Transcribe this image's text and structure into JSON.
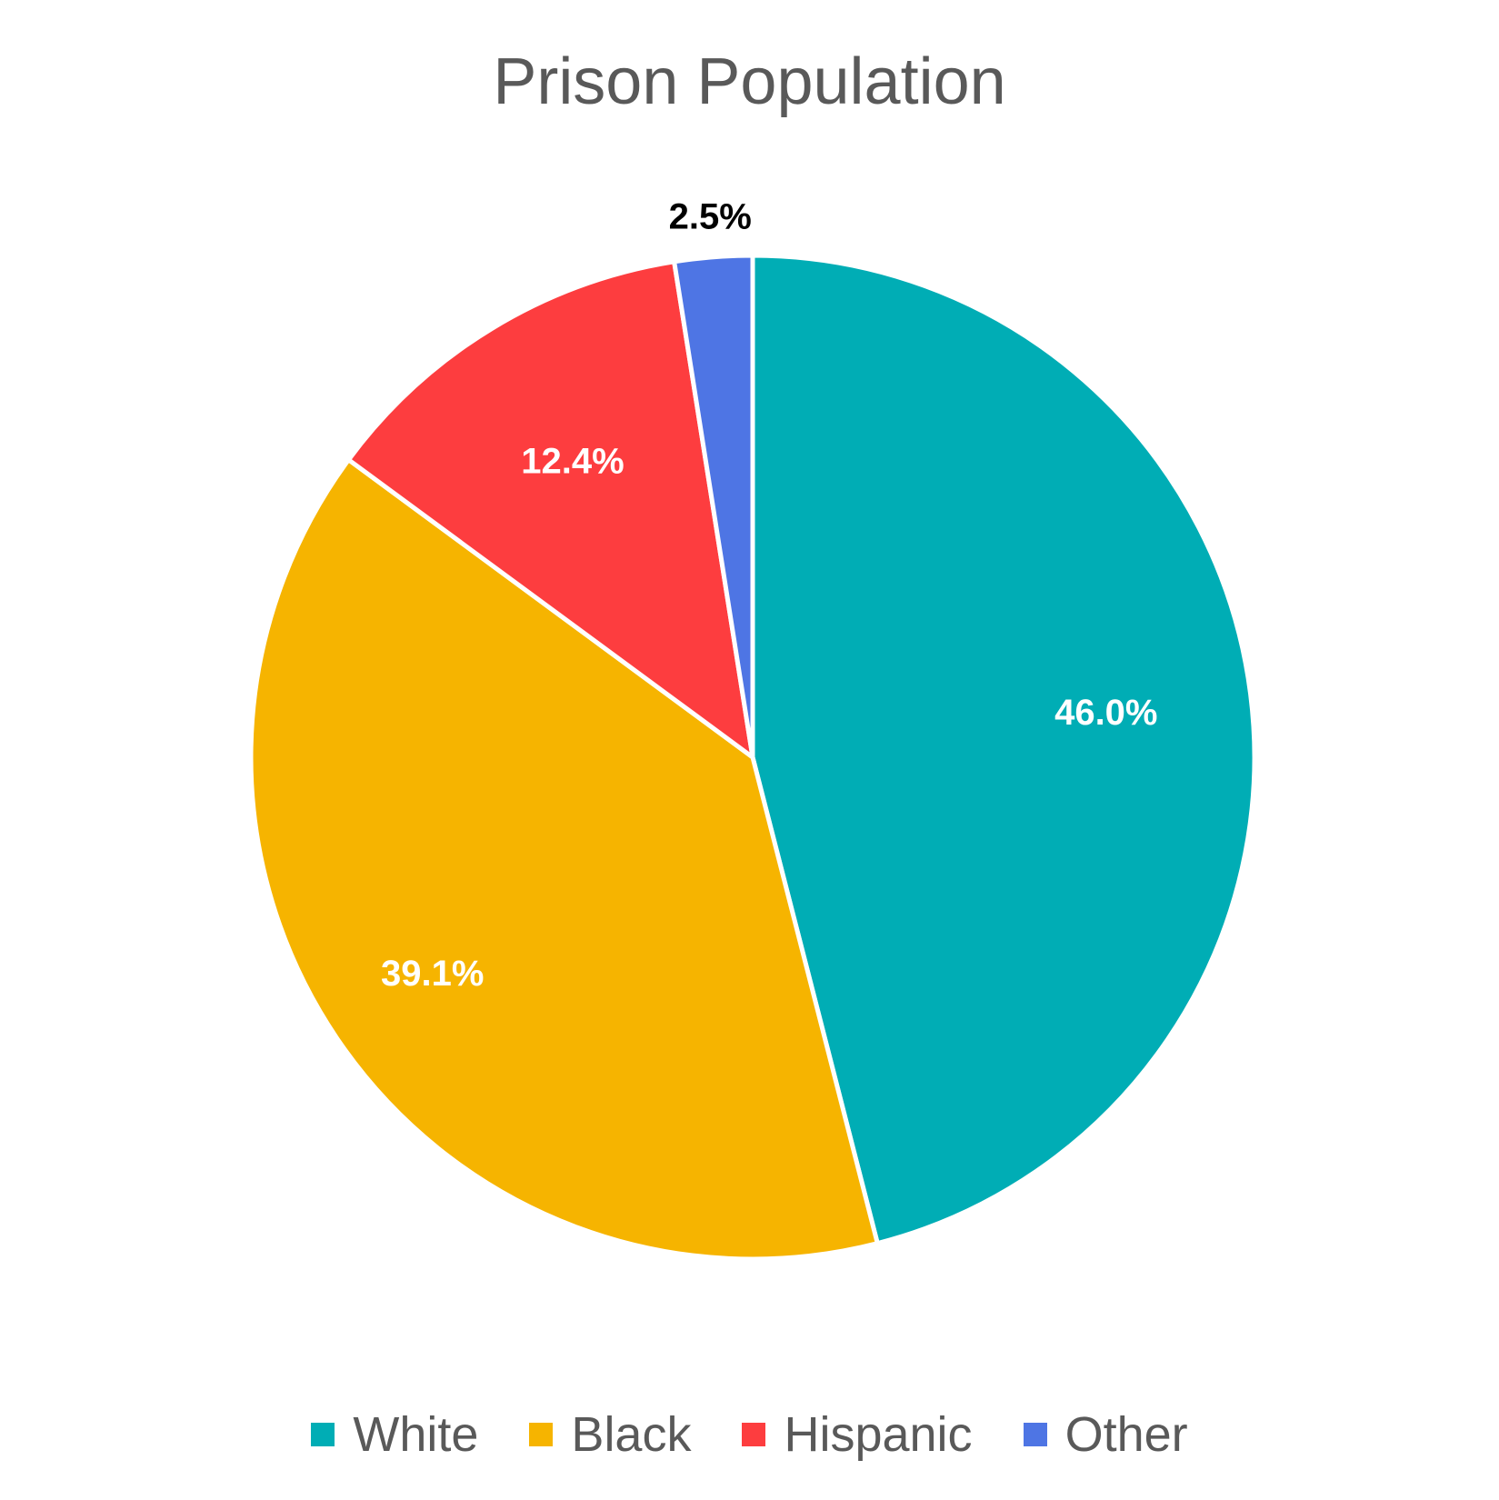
{
  "chart_data": {
    "type": "pie",
    "title": "Prison Population",
    "categories": [
      "White",
      "Black",
      "Hispanic",
      "Other"
    ],
    "values": [
      46.0,
      39.1,
      12.4,
      2.5
    ],
    "value_labels": [
      "46.0%",
      "39.1%",
      "12.4%",
      "2.5%"
    ],
    "colors": [
      "#00ADB5",
      "#F6B400",
      "#FD3D3F",
      "#4E75E4"
    ],
    "label_colors": [
      "#FFFFFF",
      "#FFFFFF",
      "#FFFFFF",
      "#000000"
    ],
    "legend_position": "bottom"
  }
}
